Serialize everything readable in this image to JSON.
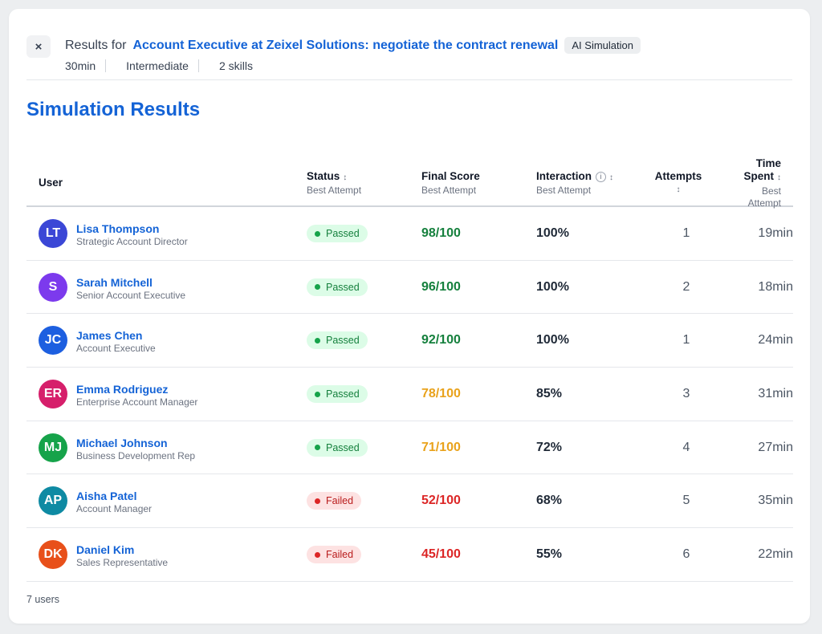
{
  "header": {
    "prefix": "Results for",
    "title": "Account Executive at Zeixel Solutions: negotiate the contract renewal",
    "badge": "AI Simulation",
    "meta": [
      "30min",
      "Intermediate",
      "2 skills"
    ],
    "close_icon": "×"
  },
  "page_title": "Simulation Results",
  "columns": {
    "user": "User",
    "status": "Status",
    "status_sub": "Best Attempt",
    "score": "Final Score",
    "score_sub": "Best Attempt",
    "interaction": "Interaction",
    "interaction_sub": "Best Attempt",
    "attempts": "Attempts",
    "time_line1": "Time",
    "time_line2": "Spent",
    "time_sub1": "Best",
    "time_sub2": "Attempt",
    "sort_icon": "↕",
    "info_icon": "i"
  },
  "rows": [
    {
      "initials": "LT",
      "avatar_color": "#3b47d6",
      "name": "Lisa Thompson",
      "role": "Strategic Account Director",
      "status": "Passed",
      "status_type": "passed",
      "score": "98/100",
      "score_color": "#15803d",
      "interaction": "100%",
      "attempts": "1",
      "time": "19min"
    },
    {
      "initials": "S",
      "avatar_color": "#7c3aed",
      "name": "Sarah Mitchell",
      "role": "Senior Account Executive",
      "status": "Passed",
      "status_type": "passed",
      "score": "96/100",
      "score_color": "#15803d",
      "interaction": "100%",
      "attempts": "2",
      "time": "18min"
    },
    {
      "initials": "JC",
      "avatar_color": "#1d5fe0",
      "name": "James Chen",
      "role": "Account Executive",
      "status": "Passed",
      "status_type": "passed",
      "score": "92/100",
      "score_color": "#15803d",
      "interaction": "100%",
      "attempts": "1",
      "time": "24min"
    },
    {
      "initials": "ER",
      "avatar_color": "#d61f6b",
      "name": "Emma Rodriguez",
      "role": "Enterprise Account Manager",
      "status": "Passed",
      "status_type": "passed",
      "score": "78/100",
      "score_color": "#e9a21b",
      "interaction": "85%",
      "attempts": "3",
      "time": "31min"
    },
    {
      "initials": "MJ",
      "avatar_color": "#16a34a",
      "name": "Michael Johnson",
      "role": "Business Development Rep",
      "status": "Passed",
      "status_type": "passed",
      "score": "71/100",
      "score_color": "#e9a21b",
      "interaction": "72%",
      "attempts": "4",
      "time": "27min"
    },
    {
      "initials": "AP",
      "avatar_color": "#0e8aa3",
      "name": "Aisha Patel",
      "role": "Account Manager",
      "status": "Failed",
      "status_type": "failed",
      "score": "52/100",
      "score_color": "#dc2626",
      "interaction": "68%",
      "attempts": "5",
      "time": "35min"
    },
    {
      "initials": "DK",
      "avatar_color": "#e8501a",
      "name": "Daniel Kim",
      "role": "Sales Representative",
      "status": "Failed",
      "status_type": "failed",
      "score": "45/100",
      "score_color": "#dc2626",
      "interaction": "55%",
      "attempts": "6",
      "time": "22min"
    }
  ],
  "footer": "7 users"
}
